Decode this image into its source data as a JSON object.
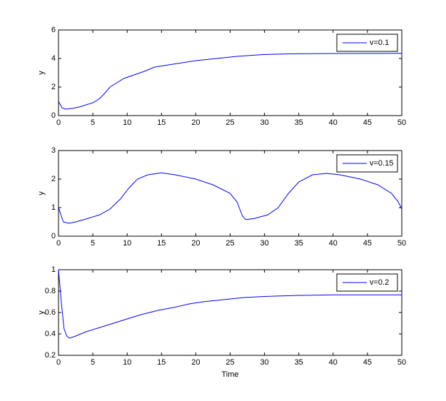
{
  "chart_data": [
    {
      "type": "line",
      "ylabel": "y",
      "x": [
        0,
        0.5,
        1,
        2,
        3,
        4,
        5,
        6,
        6.8,
        7.5,
        8.5,
        9.5,
        11,
        12.5,
        14,
        16,
        18,
        20,
        22,
        24,
        26,
        28,
        30,
        33,
        36,
        40,
        50
      ],
      "series": [
        {
          "name": "v=0.1",
          "color": "#0000ff",
          "values": [
            1,
            0.55,
            0.45,
            0.5,
            0.6,
            0.75,
            0.9,
            1.2,
            1.6,
            2.0,
            2.3,
            2.6,
            2.85,
            3.1,
            3.4,
            3.55,
            3.7,
            3.85,
            3.95,
            4.05,
            4.15,
            4.22,
            4.28,
            4.32,
            4.34,
            4.35,
            4.36
          ]
        }
      ],
      "xlim": [
        0,
        50
      ],
      "xticks": [
        0,
        5,
        10,
        15,
        20,
        25,
        30,
        35,
        40,
        45,
        50
      ],
      "ylim": [
        0,
        6
      ],
      "yticks": [
        0,
        2,
        4,
        6
      ],
      "legend": "upper right"
    },
    {
      "type": "line",
      "ylabel": "y",
      "x": [
        0,
        0.7,
        1.5,
        2.5,
        4,
        6,
        7.5,
        9,
        10.3,
        11.5,
        13,
        15,
        17,
        20,
        22.5,
        25,
        26,
        26.8,
        27.3,
        28.5,
        30.5,
        32,
        33.5,
        35,
        37,
        39,
        41,
        44,
        46.5,
        48.5,
        49.5,
        50
      ],
      "series": [
        {
          "name": "v=0.15",
          "color": "#0000ff",
          "values": [
            1,
            0.5,
            0.45,
            0.5,
            0.6,
            0.75,
            0.95,
            1.3,
            1.7,
            2.0,
            2.15,
            2.22,
            2.15,
            2.0,
            1.8,
            1.5,
            1.2,
            0.7,
            0.58,
            0.62,
            0.75,
            1.0,
            1.5,
            1.9,
            2.15,
            2.2,
            2.15,
            2.0,
            1.8,
            1.5,
            1.2,
            0.95
          ]
        }
      ],
      "xlim": [
        0,
        50
      ],
      "xticks": [
        0,
        5,
        10,
        15,
        20,
        25,
        30,
        35,
        40,
        45,
        50
      ],
      "ylim": [
        0,
        3
      ],
      "yticks": [
        0,
        1,
        2,
        3
      ],
      "legend": "upper right"
    },
    {
      "type": "line",
      "ylabel": "y",
      "xlabel": "Time",
      "x": [
        0,
        0.4,
        0.8,
        1.2,
        1.6,
        2.5,
        4,
        6,
        8,
        10,
        12,
        14.5,
        17,
        19,
        21,
        24,
        27,
        30,
        35,
        40,
        45,
        50
      ],
      "series": [
        {
          "name": "v=0.2",
          "color": "#0000ff",
          "values": [
            1,
            0.7,
            0.45,
            0.38,
            0.36,
            0.38,
            0.42,
            0.46,
            0.5,
            0.54,
            0.58,
            0.62,
            0.65,
            0.68,
            0.7,
            0.72,
            0.74,
            0.75,
            0.76,
            0.765,
            0.765,
            0.765
          ]
        }
      ],
      "xlim": [
        0,
        50
      ],
      "xticks": [
        0,
        5,
        10,
        15,
        20,
        25,
        30,
        35,
        40,
        45,
        50
      ],
      "ylim": [
        0.2,
        1
      ],
      "yticks": [
        0.2,
        0.4,
        0.6,
        0.8,
        1
      ],
      "legend": "upper right"
    }
  ]
}
